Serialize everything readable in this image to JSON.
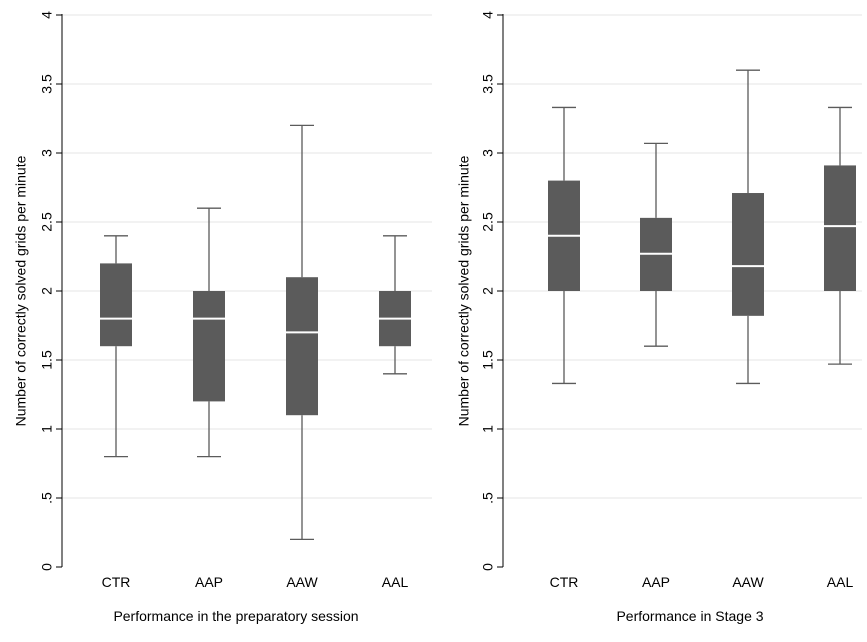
{
  "colors": {
    "box_fill": "#5b5b5b",
    "whisker": "#5b5b5b",
    "median": "#ffffff",
    "grid": "#e6e6e6",
    "axis": "#000000"
  },
  "chart_data": [
    {
      "type": "boxplot",
      "title": "",
      "xlabel": "Performance in the preparatory session",
      "ylabel": "Number of correctly solved grids per minute",
      "ylim": [
        0,
        4
      ],
      "yticks": [
        "0",
        ".5",
        "1",
        "1.5",
        "2",
        "2.5",
        "3",
        "3.5",
        "4"
      ],
      "grid": true,
      "categories": [
        "CTR",
        "AAP",
        "AAW",
        "AAL"
      ],
      "boxes": [
        {
          "min": 0.8,
          "q1": 1.6,
          "median": 1.8,
          "q3": 2.2,
          "max": 2.4
        },
        {
          "min": 0.8,
          "q1": 1.2,
          "median": 1.8,
          "q3": 2.0,
          "max": 2.6
        },
        {
          "min": 0.2,
          "q1": 1.1,
          "median": 1.7,
          "q3": 2.1,
          "max": 3.2
        },
        {
          "min": 1.4,
          "q1": 1.6,
          "median": 1.8,
          "q3": 2.0,
          "max": 2.4
        }
      ]
    },
    {
      "type": "boxplot",
      "title": "",
      "xlabel": "Performance in Stage 3",
      "ylabel": "Number of correctly solved grids per minute",
      "ylim": [
        0,
        4
      ],
      "yticks": [
        "0",
        ".5",
        "1",
        "1.5",
        "2",
        "2.5",
        "3",
        "3.5",
        "4"
      ],
      "grid": true,
      "categories": [
        "CTR",
        "AAP",
        "AAW",
        "AAL"
      ],
      "boxes": [
        {
          "min": 1.33,
          "q1": 2.0,
          "median": 2.4,
          "q3": 2.8,
          "max": 3.33
        },
        {
          "min": 1.6,
          "q1": 2.0,
          "median": 2.27,
          "q3": 2.53,
          "max": 3.07
        },
        {
          "min": 1.33,
          "q1": 1.82,
          "median": 2.18,
          "q3": 2.71,
          "max": 3.6
        },
        {
          "min": 1.47,
          "q1": 2.0,
          "median": 2.47,
          "q3": 2.91,
          "max": 3.33
        }
      ]
    }
  ]
}
